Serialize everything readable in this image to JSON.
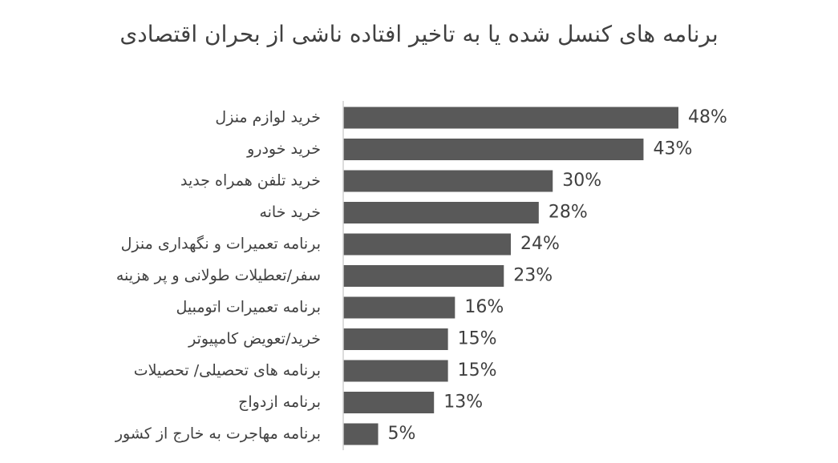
{
  "chart_data": {
    "type": "bar",
    "orientation": "horizontal",
    "title": "برنامه های کنسل شده یا به تاخیر افتاده ناشی از بحران اقتصادی",
    "categories": [
      "خرید لوازم منزل",
      "خرید خودرو",
      "خرید تلفن همراه جدید",
      "خرید خانه",
      "برنامه تعمیرات و نگهداری منزل",
      "سفر/تعطیلات طولانی و پر هزینه",
      "برنامه تعمیرات اتومبیل",
      "خرید/تعویض کامپیوتر",
      "برنامه های تحصیلی/ تحصیلات",
      "برنامه ازدواج",
      "برنامه مهاجرت به خارج از کشور"
    ],
    "values": [
      48,
      43,
      30,
      28,
      24,
      23,
      16,
      15,
      15,
      13,
      5
    ],
    "value_labels": [
      "48%",
      "43%",
      "30%",
      "28%",
      "24%",
      "23%",
      "16%",
      "15%",
      "15%",
      "13%",
      "5%"
    ],
    "unit": "%",
    "bar_color": "#595959",
    "grid": false,
    "legend": "none"
  }
}
